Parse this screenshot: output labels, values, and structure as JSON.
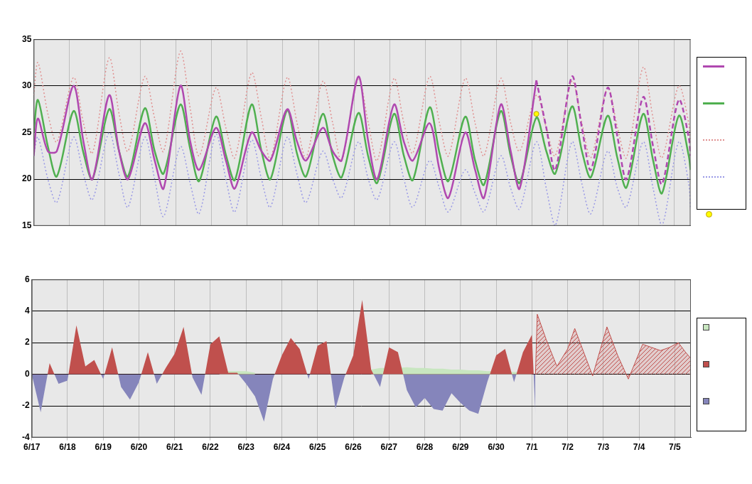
{
  "chart_data": [
    {
      "type": "line",
      "x": [
        0,
        0.12,
        0.4,
        0.65,
        1.12,
        1.4,
        1.65,
        2.12,
        2.4,
        2.65,
        3.12,
        3.4,
        3.65,
        4.12,
        4.4,
        4.65,
        5.12,
        5.4,
        5.65,
        6.12,
        6.4,
        6.65,
        7.12,
        7.4,
        7.65,
        8.12,
        8.4,
        8.65,
        9.12,
        9.4,
        9.65,
        10.12,
        10.4,
        10.65,
        11.12,
        11.4,
        11.65,
        12.12,
        12.4,
        12.65,
        13.12,
        13.4,
        13.65,
        14.12,
        14.4,
        14.65,
        15.12,
        15.4,
        15.65,
        16.12,
        16.4,
        16.65,
        17.12,
        17.4,
        17.65,
        18.12,
        18.4,
        18.45
      ],
      "xlim": [
        0,
        18.45
      ],
      "xticks": [
        {
          "value": 0,
          "label": "6/17"
        },
        {
          "value": 1,
          "label": "6/18"
        },
        {
          "value": 2,
          "label": "6/19"
        },
        {
          "value": 3,
          "label": "6/20"
        },
        {
          "value": 4,
          "label": "6/21"
        },
        {
          "value": 5,
          "label": "6/22"
        },
        {
          "value": 6,
          "label": "6/23"
        },
        {
          "value": 7,
          "label": "6/24"
        },
        {
          "value": 8,
          "label": "6/25"
        },
        {
          "value": 9,
          "label": "6/26"
        },
        {
          "value": 10,
          "label": "6/27"
        },
        {
          "value": 11,
          "label": "6/28"
        },
        {
          "value": 12,
          "label": "6/29"
        },
        {
          "value": 13,
          "label": "6/30"
        },
        {
          "value": 14,
          "label": "7/1"
        },
        {
          "value": 15,
          "label": "7/2"
        },
        {
          "value": 16,
          "label": "7/3"
        },
        {
          "value": 17,
          "label": "7/4"
        },
        {
          "value": 18,
          "label": "7/5"
        }
      ],
      "ylim": [
        15,
        35
      ],
      "yticks": [
        15,
        20,
        25,
        30,
        35
      ],
      "grid": true,
      "legend": "right",
      "tick_labels": "y",
      "series": [
        {
          "color": "#b048b0",
          "line_style": "solid",
          "values": [
            22.5,
            26.5,
            23,
            23,
            30,
            24,
            20,
            29,
            23,
            20,
            26,
            22,
            19,
            30,
            24,
            21,
            25.5,
            22,
            19,
            25,
            23,
            22,
            27.5,
            24,
            22,
            25.5,
            23,
            22,
            31,
            24,
            20,
            28,
            24,
            22,
            26,
            21,
            18,
            25,
            21,
            18,
            28,
            23,
            19,
            30.6,
            null,
            null,
            null,
            null,
            null,
            null,
            null,
            null,
            null,
            null,
            null,
            null,
            null,
            null
          ]
        },
        {
          "color": "#b048b0",
          "line_style": "dashed",
          "values": [
            null,
            null,
            null,
            null,
            null,
            null,
            null,
            null,
            null,
            null,
            null,
            null,
            null,
            null,
            null,
            null,
            null,
            null,
            null,
            null,
            null,
            null,
            null,
            null,
            null,
            null,
            null,
            null,
            null,
            null,
            null,
            null,
            null,
            null,
            null,
            null,
            null,
            null,
            null,
            null,
            null,
            null,
            null,
            30.6,
            25.5,
            21,
            31,
            25.5,
            21,
            29.8,
            24.5,
            20,
            28.8,
            23.5,
            19.5,
            28.5,
            24.5,
            22.5
          ]
        },
        {
          "color": "#50b050",
          "line_style": "solid",
          "values": [
            25,
            28.5,
            23.5,
            20.3,
            27.3,
            22.8,
            20,
            27.5,
            23,
            20.3,
            27.6,
            23,
            20.6,
            28,
            23.2,
            19.8,
            26.7,
            22.6,
            19.9,
            28,
            23,
            20,
            27.4,
            22.7,
            20.3,
            27,
            22.5,
            20.2,
            27.1,
            22.4,
            19.6,
            27,
            22.5,
            19.9,
            27.7,
            22.8,
            19.8,
            26.7,
            22,
            19.4,
            27.3,
            22.5,
            19.6,
            26.6,
            23,
            20.6,
            27.8,
            23,
            20.2,
            26.8,
            22.2,
            19.1,
            27,
            22,
            18.5,
            26.8,
            22.5,
            21
          ]
        },
        {
          "color": "#e09090",
          "line_style": "dotted",
          "values": [
            29,
            32.5,
            27,
            24,
            30.9,
            26,
            22.8,
            33,
            27,
            23,
            31,
            26.5,
            23,
            33.7,
            27.5,
            22.5,
            29.8,
            25.5,
            22.3,
            31.4,
            26.5,
            22.2,
            30.9,
            26,
            22.3,
            30.5,
            26,
            22,
            30.8,
            26,
            22,
            30.8,
            26,
            22.8,
            31,
            26,
            22.5,
            30.8,
            26,
            22.5,
            30.8,
            26,
            23,
            29,
            25.5,
            22.5,
            30.5,
            26,
            22.3,
            29.8,
            25.5,
            22.3,
            32,
            26.5,
            22.3,
            30,
            26,
            24
          ]
        },
        {
          "color": "#9999e6",
          "line_style": "dotted",
          "values": [
            22.5,
            24.5,
            20,
            17.5,
            24.5,
            20.5,
            17.8,
            25,
            20.5,
            17,
            24.5,
            20,
            16,
            23.5,
            19.5,
            16.3,
            24.8,
            20,
            16.5,
            24.2,
            20,
            17,
            24.5,
            20.5,
            17.5,
            23,
            20,
            18,
            24,
            20,
            17.8,
            24,
            20,
            17,
            22,
            19,
            16.5,
            21,
            18.5,
            16.5,
            22.5,
            19,
            16.8,
            24,
            19,
            15,
            24,
            19.5,
            16.3,
            23,
            19,
            17,
            24,
            19,
            15,
            24,
            19.5,
            17
          ]
        },
        {
          "color": "#ffff00",
          "marker": "circle",
          "values": [
            null,
            null,
            null,
            null,
            null,
            null,
            null,
            null,
            null,
            null,
            null,
            null,
            null,
            null,
            null,
            null,
            null,
            null,
            null,
            null,
            null,
            null,
            null,
            null,
            null,
            null,
            null,
            null,
            null,
            null,
            null,
            null,
            null,
            null,
            null,
            null,
            null,
            null,
            null,
            null,
            null,
            null,
            null,
            27,
            null,
            null,
            null,
            null,
            null,
            null,
            null,
            null,
            null,
            null,
            null,
            null,
            null,
            null
          ]
        }
      ]
    },
    {
      "type": "area",
      "x": [
        0,
        0.25,
        0.5,
        0.75,
        1,
        1.25,
        1.5,
        1.75,
        2,
        2.25,
        2.5,
        2.75,
        3,
        3.25,
        3.5,
        3.75,
        4,
        4.25,
        4.5,
        4.75,
        5,
        5.25,
        5.5,
        5.75,
        6,
        6.25,
        6.5,
        6.75,
        7,
        7.25,
        7.5,
        7.75,
        8,
        8.25,
        8.5,
        8.75,
        9,
        9.25,
        9.5,
        9.75,
        10,
        10.25,
        10.5,
        10.75,
        11,
        11.25,
        11.5,
        11.75,
        12,
        12.25,
        12.5,
        12.75,
        13,
        13.25,
        13.5,
        13.75,
        14,
        14.1,
        14.15,
        14.4,
        14.7,
        15,
        15.2,
        15.45,
        15.7,
        16.1,
        16.4,
        16.7,
        17.1,
        17.35,
        17.6,
        17.85,
        18.1,
        18.3,
        18.45
      ],
      "xlim": [
        0,
        18.45
      ],
      "xticks": [
        {
          "value": 0,
          "label": "6/17"
        },
        {
          "value": 1,
          "label": "6/18"
        },
        {
          "value": 2,
          "label": "6/19"
        },
        {
          "value": 3,
          "label": "6/20"
        },
        {
          "value": 4,
          "label": "6/21"
        },
        {
          "value": 5,
          "label": "6/22"
        },
        {
          "value": 6,
          "label": "6/23"
        },
        {
          "value": 7,
          "label": "6/24"
        },
        {
          "value": 8,
          "label": "6/25"
        },
        {
          "value": 9,
          "label": "6/26"
        },
        {
          "value": 10,
          "label": "6/27"
        },
        {
          "value": 11,
          "label": "6/28"
        },
        {
          "value": 12,
          "label": "6/29"
        },
        {
          "value": 13,
          "label": "6/30"
        },
        {
          "value": 14,
          "label": "7/1"
        },
        {
          "value": 15,
          "label": "7/2"
        },
        {
          "value": 16,
          "label": "7/3"
        },
        {
          "value": 17,
          "label": "7/4"
        },
        {
          "value": 18,
          "label": "7/5"
        }
      ],
      "ylim": [
        -4,
        6
      ],
      "yticks": [
        -4,
        -2,
        0,
        2,
        4,
        6
      ],
      "grid": true,
      "legend": "right",
      "series": [
        {
          "color": "#c8e6c0",
          "line_style": "solid",
          "values": [
            null,
            null,
            null,
            null,
            null,
            null,
            null,
            null,
            null,
            null,
            null,
            null,
            null,
            null,
            null,
            null,
            null,
            null,
            null,
            null,
            null,
            0.2,
            0.2,
            0.2,
            0.2,
            0.1,
            null,
            null,
            null,
            null,
            null,
            null,
            null,
            null,
            null,
            null,
            null,
            null,
            0.3,
            0.4,
            0.4,
            0.4,
            0.45,
            0.4,
            0.4,
            0.35,
            0.35,
            0.3,
            0.3,
            0.25,
            0.25,
            0.2,
            0.2,
            0.15,
            0.15,
            0.1,
            0.1,
            null,
            null,
            null,
            null,
            null,
            null,
            null,
            null,
            null,
            null,
            null,
            null,
            null,
            null,
            null,
            null,
            null,
            null
          ]
        },
        {
          "colors": [
            "#c0504d",
            "#8585bb"
          ],
          "line_style": "solid",
          "values": [
            0,
            -2.4,
            0.7,
            -0.6,
            -0.4,
            3.1,
            0.5,
            0.9,
            -0.3,
            1.7,
            -0.8,
            -1.6,
            -0.5,
            1.4,
            -0.6,
            0.4,
            1.3,
            3,
            -0.2,
            -1.3,
            1.9,
            2.4,
            0.1,
            0.1,
            -0.6,
            -1.4,
            -3,
            -0.3,
            1.2,
            2.3,
            1.6,
            -0.3,
            1.8,
            2.1,
            -2.2,
            -0.2,
            1.2,
            4.7,
            0.3,
            -0.8,
            1.7,
            1.4,
            -1,
            -2.1,
            -1.5,
            -2.2,
            -2.3,
            -1.2,
            -1.8,
            -2.3,
            -2.5,
            -0.5,
            1.2,
            1.6,
            -0.5,
            1.4,
            2.5,
            -2.6,
            null,
            null,
            null,
            null,
            null,
            null,
            null,
            null,
            null,
            null,
            null,
            null,
            null,
            null,
            null,
            null,
            null
          ]
        },
        {
          "color": "#c0504d",
          "line_style": "hatched",
          "values": [
            null,
            null,
            null,
            null,
            null,
            null,
            null,
            null,
            null,
            null,
            null,
            null,
            null,
            null,
            null,
            null,
            null,
            null,
            null,
            null,
            null,
            null,
            null,
            null,
            null,
            null,
            null,
            null,
            null,
            null,
            null,
            null,
            null,
            null,
            null,
            null,
            null,
            null,
            null,
            null,
            null,
            null,
            null,
            null,
            null,
            null,
            null,
            null,
            null,
            null,
            null,
            null,
            null,
            null,
            null,
            null,
            null,
            0,
            3.8,
            2.2,
            0.5,
            1.6,
            2.9,
            1.4,
            -0.1,
            3,
            1.2,
            -0.3,
            1.9,
            1.7,
            1.5,
            1.7,
            2,
            1.4,
            1
          ]
        }
      ]
    }
  ]
}
